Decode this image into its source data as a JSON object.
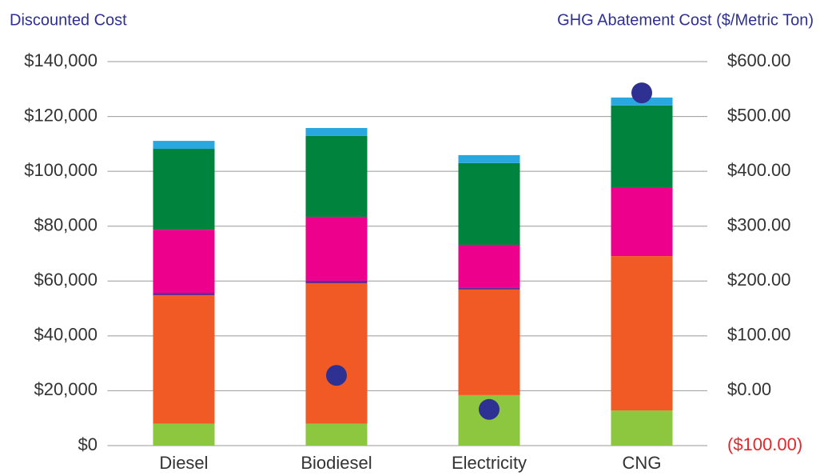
{
  "chart_data": {
    "type": "stacked_bar",
    "y_title": "Discounted Cost",
    "y2_title": "GHG Abatement Cost ($/Metric Ton)",
    "categories": [
      "Diesel",
      "Biodiesel",
      "Electricity",
      "CNG"
    ],
    "series": [
      {
        "color": "#8dc63f",
        "values": [
          8000,
          8000,
          18400,
          12800
        ]
      },
      {
        "color": "#f15a24",
        "values": [
          46800,
          51200,
          38500,
          56300
        ]
      },
      {
        "color": "#662d91",
        "values": [
          900,
          900,
          800,
          0
        ]
      },
      {
        "color": "#ec008c",
        "values": [
          23000,
          23300,
          15500,
          25100
        ]
      },
      {
        "color": "#00843d",
        "values": [
          29500,
          29500,
          29800,
          29800
        ]
      },
      {
        "color": "#29a8e0",
        "values": [
          2900,
          2900,
          2900,
          2900
        ]
      },
      {
        "type": "scatter",
        "axis": "y2",
        "color": "#2e3192",
        "values": [
          null,
          28,
          -34,
          543
        ]
      }
    ],
    "ylim": [
      0,
      140000
    ],
    "yticks": [
      {
        "value": 0,
        "label": "$0"
      },
      {
        "value": 20000,
        "label": "$20,000"
      },
      {
        "value": 40000,
        "label": "$40,000"
      },
      {
        "value": 60000,
        "label": "$60,000"
      },
      {
        "value": 80000,
        "label": "$80,000"
      },
      {
        "value": 100000,
        "label": "$100,000"
      },
      {
        "value": 120000,
        "label": "$120,000"
      },
      {
        "value": 140000,
        "label": "$140,000"
      }
    ],
    "y2lim": [
      -100,
      600
    ],
    "y2ticks": [
      {
        "value": -100,
        "label": "($100.00)"
      },
      {
        "value": 0,
        "label": "$0.00"
      },
      {
        "value": 100,
        "label": "$100.00"
      },
      {
        "value": 200,
        "label": "$200.00"
      },
      {
        "value": 300,
        "label": "$300.00"
      },
      {
        "value": 400,
        "label": "$400.00"
      },
      {
        "value": 500,
        "label": "$500.00"
      },
      {
        "value": 600,
        "label": "$600.00"
      }
    ],
    "y2_negative_color": "#e8262a",
    "title_color": "#2e3192",
    "grid": true
  }
}
